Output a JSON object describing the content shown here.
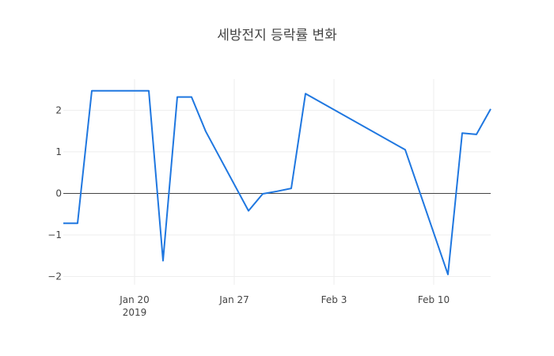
{
  "chart_data": {
    "type": "line",
    "title": "세방전지 등락률 변화",
    "xlabel": "",
    "ylabel": "",
    "x_range": [
      "2019-01-15",
      "2019-02-14"
    ],
    "ylim": [
      -2.2,
      2.75
    ],
    "x_ticks": [
      {
        "date": "2019-01-20",
        "label": "Jan 20",
        "sublabel": "2019"
      },
      {
        "date": "2019-01-27",
        "label": "Jan 27",
        "sublabel": ""
      },
      {
        "date": "2019-02-03",
        "label": "Feb 3",
        "sublabel": ""
      },
      {
        "date": "2019-02-10",
        "label": "Feb 10",
        "sublabel": ""
      }
    ],
    "y_ticks": [
      {
        "value": -2,
        "label": "−2"
      },
      {
        "value": -1,
        "label": "−1"
      },
      {
        "value": 0,
        "label": "0"
      },
      {
        "value": 1,
        "label": "1"
      },
      {
        "value": 2,
        "label": "2"
      }
    ],
    "grid": true,
    "legend": false,
    "series": [
      {
        "color": "#1f77e0",
        "x": [
          "2019-01-15",
          "2019-01-16",
          "2019-01-17",
          "2019-01-18",
          "2019-01-21",
          "2019-01-22",
          "2019-01-23",
          "2019-01-24",
          "2019-01-25",
          "2019-01-28",
          "2019-01-29",
          "2019-01-30",
          "2019-01-31",
          "2019-02-01",
          "2019-02-08",
          "2019-02-11",
          "2019-02-12",
          "2019-02-13",
          "2019-02-14"
        ],
        "y": [
          -0.72,
          -0.72,
          2.47,
          2.47,
          2.47,
          -1.62,
          2.32,
          2.32,
          1.49,
          -0.42,
          -0.01,
          0.05,
          0.12,
          2.4,
          1.05,
          -1.95,
          1.45,
          1.42,
          2.03
        ]
      }
    ]
  }
}
